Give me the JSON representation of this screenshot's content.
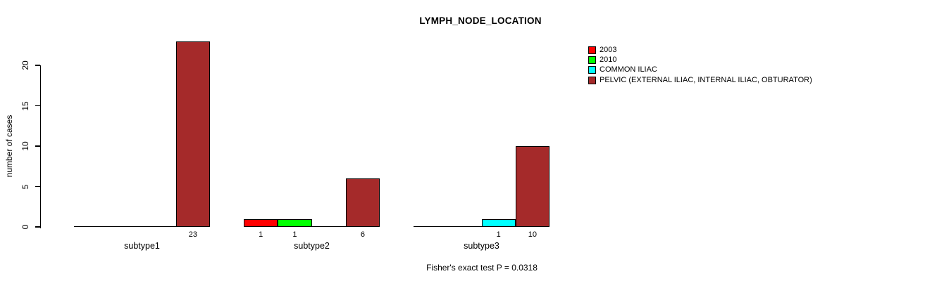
{
  "figure": {
    "background": "#FFFFFF",
    "text_color": "#000000"
  },
  "chart_data": {
    "type": "bar",
    "title": "LYMPH_NODE_LOCATION",
    "ylabel": "number of cases",
    "xlabel": "",
    "categories": [
      "subtype1",
      "subtype2",
      "subtype3"
    ],
    "series": [
      {
        "name": "2003",
        "color": "#FF0000",
        "values": [
          0,
          1,
          0
        ]
      },
      {
        "name": "2010",
        "color": "#00FF00",
        "values": [
          0,
          1,
          0
        ]
      },
      {
        "name": "COMMON ILIAC",
        "color": "#00FFFF",
        "values": [
          0,
          0,
          1
        ]
      },
      {
        "name": "PELVIC (EXTERNAL ILIAC, INTERNAL ILIAC, OBTURATOR)",
        "color": "#A52A2A",
        "values": [
          23,
          6,
          10
        ]
      }
    ],
    "yticks": [
      0,
      5,
      10,
      15,
      20
    ],
    "ylim": [
      0,
      23
    ],
    "grid": false,
    "legend_position": "top-right",
    "bar_value_labels": "shown below each non-zero bar",
    "annotation": "Fisher's exact test P = 0.0318",
    "axis_color": "#000000"
  }
}
